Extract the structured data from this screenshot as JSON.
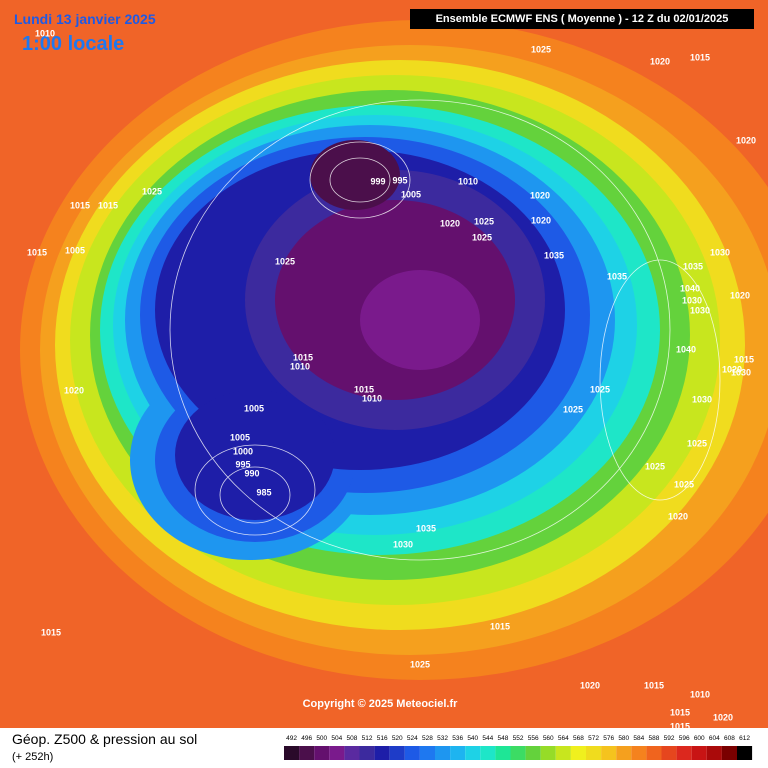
{
  "header": {
    "date": "Lundi 13 janvier 2025",
    "time": "1:00 locale",
    "run": "Ensemble ECMWF ENS  ( Moyenne )  -  12 Z du 02/01/2025"
  },
  "copyright": "Copyright © 2025 Meteociel.fr",
  "footer": {
    "title": "Géop. Z500 & pression au sol",
    "lead": "(+ 252h)"
  },
  "legend": [
    {
      "value": 492,
      "color": "#2a0a2a"
    },
    {
      "value": 496,
      "color": "#4b0f4b"
    },
    {
      "value": 500,
      "color": "#64106e"
    },
    {
      "value": 504,
      "color": "#7a1a8c"
    },
    {
      "value": 508,
      "color": "#5a2aa0"
    },
    {
      "value": 512,
      "color": "#3c2a9e"
    },
    {
      "value": 516,
      "color": "#1e1ea8"
    },
    {
      "value": 520,
      "color": "#1e3cc8"
    },
    {
      "value": 524,
      "color": "#1e5ae6"
    },
    {
      "value": 528,
      "color": "#1e78f0"
    },
    {
      "value": 532,
      "color": "#1e96f0"
    },
    {
      "value": 536,
      "color": "#1eb4f0"
    },
    {
      "value": 540,
      "color": "#1ed2e6"
    },
    {
      "value": 544,
      "color": "#1ee6c8"
    },
    {
      "value": 548,
      "color": "#1ee696"
    },
    {
      "value": 552,
      "color": "#3cdc64"
    },
    {
      "value": 556,
      "color": "#64d23c"
    },
    {
      "value": 560,
      "color": "#96dc28"
    },
    {
      "value": 564,
      "color": "#c8e61e"
    },
    {
      "value": 568,
      "color": "#f0f01e"
    },
    {
      "value": 572,
      "color": "#f0dc1e"
    },
    {
      "value": 576,
      "color": "#f5c31e"
    },
    {
      "value": 580,
      "color": "#f5a01e"
    },
    {
      "value": 584,
      "color": "#f5821e"
    },
    {
      "value": 588,
      "color": "#f0641e"
    },
    {
      "value": 592,
      "color": "#e6461e"
    },
    {
      "value": 596,
      "color": "#dc281e"
    },
    {
      "value": 600,
      "color": "#c81414"
    },
    {
      "value": 604,
      "color": "#aa0a0a"
    },
    {
      "value": 608,
      "color": "#7a0000"
    },
    {
      "value": 612,
      "color": "#000000"
    }
  ],
  "isobar_labels": [
    "1010",
    "1025",
    "1020",
    "1015",
    "1020",
    "1015",
    "1025",
    "1015",
    "1015",
    "1005",
    "1025",
    "999",
    "995",
    "1005",
    "1010",
    "1020",
    "1020",
    "1025",
    "1020",
    "1025",
    "1035",
    "1030",
    "1035",
    "1040",
    "1030",
    "1020",
    "1015",
    "1010",
    "1015",
    "1010",
    "1005",
    "1005",
    "1000",
    "995",
    "990",
    "985",
    "1020",
    "1025",
    "1035",
    "1030",
    "1025",
    "1030",
    "1025",
    "1020",
    "1035",
    "1040",
    "1030",
    "1025",
    "1025",
    "1020",
    "1015",
    "1025",
    "1020",
    "1015",
    "1015",
    "1010",
    "1015",
    "1020",
    "1015",
    "1015",
    "1030"
  ]
}
